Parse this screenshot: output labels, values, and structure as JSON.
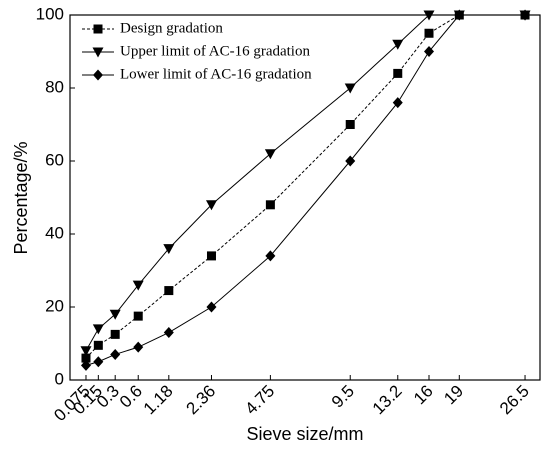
{
  "chart_data": {
    "type": "line",
    "x": [
      0.075,
      0.15,
      0.3,
      0.6,
      1.18,
      2.36,
      4.75,
      9.5,
      13.2,
      16,
      19,
      26.5
    ],
    "series": [
      {
        "name": "Design gradation",
        "color": "#000000",
        "marker": "square",
        "dash": true,
        "values": [
          6,
          9.5,
          12.5,
          17.5,
          24.5,
          34,
          48,
          70,
          84,
          95,
          100,
          100
        ]
      },
      {
        "name": "Upper limit of AC-16 gradation",
        "color": "#000000",
        "marker": "triangle-down",
        "dash": false,
        "values": [
          8,
          14,
          18,
          26,
          36,
          48,
          62,
          80,
          92,
          100,
          100,
          100
        ]
      },
      {
        "name": "Lower limit of AC-16 gradation",
        "color": "#000000",
        "marker": "diamond",
        "dash": false,
        "values": [
          4,
          5,
          7,
          9,
          13,
          20,
          34,
          60,
          76,
          90,
          100,
          100
        ]
      }
    ],
    "x_label": "Sieve size/mm",
    "y_label": "Percentage/%",
    "xscale": "power",
    "xscale_exponent": 0.45,
    "xlim": [
      0.018,
      28.4
    ],
    "xticks": [
      0.075,
      0.15,
      0.3,
      0.6,
      1.18,
      2.36,
      4.75,
      9.5,
      13.2,
      16,
      19,
      26.5
    ],
    "ylim": [
      0,
      100
    ],
    "yticks": [
      0,
      20,
      40,
      60,
      80,
      100
    ],
    "legend": "upper-left"
  }
}
